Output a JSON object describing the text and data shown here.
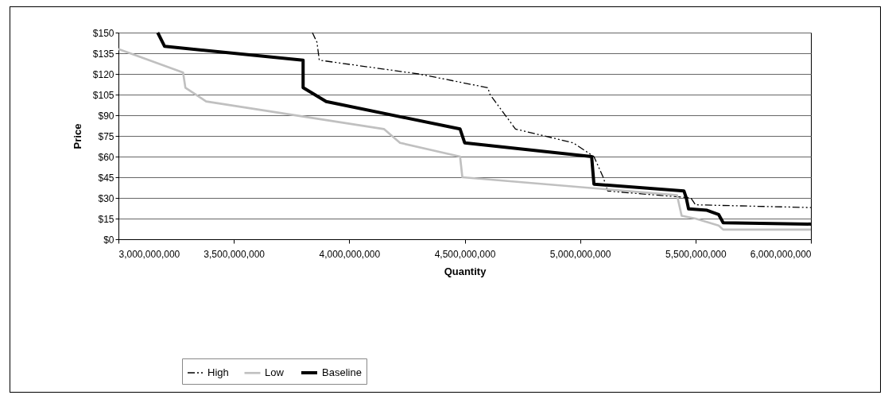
{
  "chart_data": {
    "type": "line",
    "xlabel": "Quantity",
    "ylabel": "Price",
    "grid": "y",
    "legend": "bottom",
    "xlim": [
      3000000000,
      6000000000
    ],
    "xticks": [
      {
        "value": 3000000000,
        "label": "3,000,000,000"
      },
      {
        "value": 3500000000,
        "label": "3,500,000,000"
      },
      {
        "value": 4000000000,
        "label": "4,000,000,000"
      },
      {
        "value": 4500000000,
        "label": "4,500,000,000"
      },
      {
        "value": 5000000000,
        "label": "5,000,000,000"
      },
      {
        "value": 5500000000,
        "label": "5,500,000,000"
      },
      {
        "value": 6000000000,
        "label": "6,000,000,000"
      }
    ],
    "ylim": [
      0,
      150
    ],
    "yticks": [
      {
        "value": 0,
        "label": "$0"
      },
      {
        "value": 15,
        "label": "$15"
      },
      {
        "value": 30,
        "label": "$30"
      },
      {
        "value": 45,
        "label": "$45"
      },
      {
        "value": 60,
        "label": "$60"
      },
      {
        "value": 75,
        "label": "$75"
      },
      {
        "value": 90,
        "label": "$90"
      },
      {
        "value": 105,
        "label": "$105"
      },
      {
        "value": 120,
        "label": "$120"
      },
      {
        "value": 135,
        "label": "$135"
      },
      {
        "value": 150,
        "label": "$150"
      }
    ],
    "series": [
      {
        "name": "High",
        "color": "#000000",
        "line_style": "dashed",
        "x": [
          3840000000,
          3860000000,
          3870000000,
          4300000000,
          4600000000,
          4610000000,
          4720000000,
          4970000000,
          5060000000,
          5100000000,
          5120000000,
          5480000000,
          5500000000,
          6000000000
        ],
        "values": [
          150,
          143,
          130,
          120,
          110,
          105,
          80,
          70,
          60,
          45,
          35,
          30,
          25,
          23
        ]
      },
      {
        "name": "Low",
        "color": "#c0c0c0",
        "line_style": "solid",
        "x": [
          3000000000,
          3100000000,
          3280000000,
          3290000000,
          3380000000,
          4150000000,
          4220000000,
          4480000000,
          4490000000,
          5420000000,
          5440000000,
          5500000000,
          5600000000,
          5620000000,
          6000000000
        ],
        "values": [
          138,
          132,
          121,
          110,
          100,
          80,
          70,
          60,
          45,
          32,
          17,
          15,
          10,
          7,
          7
        ]
      },
      {
        "name": "Baseline",
        "color": "#000000",
        "line_style": "solid",
        "x": [
          3170000000,
          3200000000,
          3800000000,
          3800000000,
          3900000000,
          4480000000,
          4500000000,
          5050000000,
          5060000000,
          5450000000,
          5460000000,
          5470000000,
          5550000000,
          5600000000,
          5620000000,
          6000000000
        ],
        "values": [
          150,
          140,
          130,
          110,
          100,
          80,
          70,
          60,
          40,
          35,
          30,
          22,
          21,
          18,
          12,
          11
        ]
      }
    ]
  }
}
